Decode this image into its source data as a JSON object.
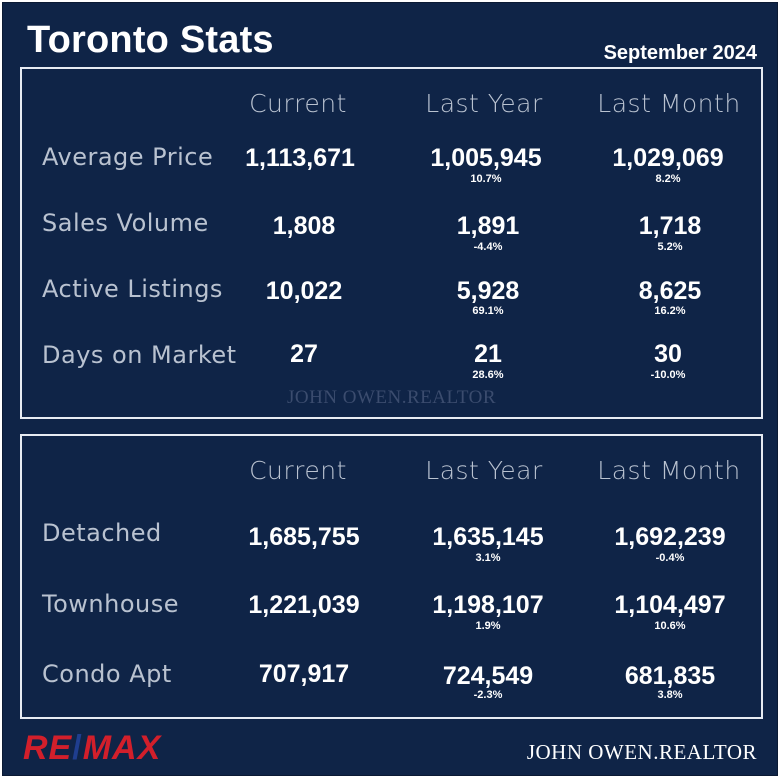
{
  "header": {
    "title": "Toronto Stats",
    "date": "September 2024"
  },
  "columns": [
    "Current",
    "Last Year",
    "Last Month"
  ],
  "summary": {
    "rows": [
      {
        "label": "Average Price",
        "current": "1,113,671",
        "last_year": "1,005,945",
        "last_year_pct": "10.7%",
        "last_month": "1,029,069",
        "last_month_pct": "8.2%"
      },
      {
        "label": "Sales Volume",
        "current": "1,808",
        "last_year": "1,891",
        "last_year_pct": "-4.4%",
        "last_month": "1,718",
        "last_month_pct": "5.2%"
      },
      {
        "label": "Active Listings",
        "current": "10,022",
        "last_year": "5,928",
        "last_year_pct": "69.1%",
        "last_month": "8,625",
        "last_month_pct": "16.2%"
      },
      {
        "label": "Days on Market",
        "current": "27",
        "last_year": "21",
        "last_year_pct": "28.6%",
        "last_month": "30",
        "last_month_pct": "-10.0%"
      }
    ],
    "watermark": "JOHN OWEN.REALTOR"
  },
  "types": {
    "rows": [
      {
        "label": "Detached",
        "current": "1,685,755",
        "last_year": "1,635,145",
        "last_year_pct": "3.1%",
        "last_month": "1,692,239",
        "last_month_pct": "-0.4%"
      },
      {
        "label": "Townhouse",
        "current": "1,221,039",
        "last_year": "1,198,107",
        "last_year_pct": "1.9%",
        "last_month": "1,104,497",
        "last_month_pct": "10.6%"
      },
      {
        "label": "Condo Apt",
        "current": "707,917",
        "last_year": "724,549",
        "last_year_pct": "-2.3%",
        "last_month": "681,835",
        "last_month_pct": "3.8%"
      }
    ]
  },
  "footer": {
    "logo_left": "RE",
    "logo_slash": "/",
    "logo_right": "MAX",
    "brand": "JOHN OWEN.REALTOR"
  },
  "colors": {
    "background": "#0f2447",
    "logo_red": "#d21f2b",
    "logo_blue": "#1f3e8f"
  }
}
